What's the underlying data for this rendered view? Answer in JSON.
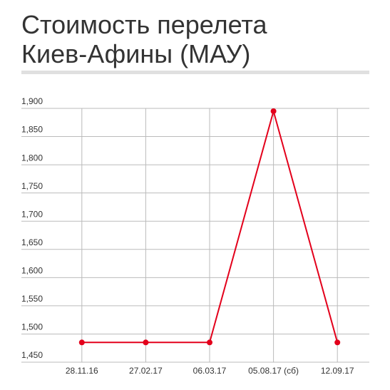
{
  "chart_data": {
    "type": "line",
    "title": [
      "Стоимость перелета",
      "Киев-Афины (МАУ)"
    ],
    "categories": [
      "28.11.16",
      "27.02.17",
      "06.03.17",
      "05.08.17 (сб)",
      "12.09.17"
    ],
    "series": [
      {
        "color": "#e3001b",
        "values": [
          1485,
          1485,
          1485,
          1895,
          1485
        ]
      }
    ],
    "ylim": [
      1450,
      1900
    ],
    "yticks": [
      {
        "value": 1450,
        "label": "1,450"
      },
      {
        "value": 1500,
        "label": "1,500"
      },
      {
        "value": 1550,
        "label": "1,550"
      },
      {
        "value": 1600,
        "label": "1,600"
      },
      {
        "value": 1650,
        "label": "1,650"
      },
      {
        "value": 1700,
        "label": "1,700"
      },
      {
        "value": 1750,
        "label": "1,750"
      },
      {
        "value": 1800,
        "label": "1,800"
      },
      {
        "value": 1850,
        "label": "1,850"
      },
      {
        "value": 1900,
        "label": "1,900"
      }
    ],
    "grid": true
  }
}
